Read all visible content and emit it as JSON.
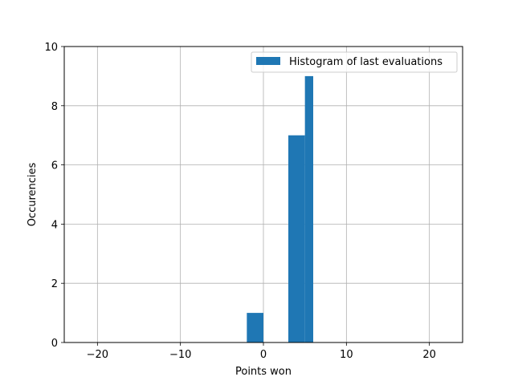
{
  "chart_data": {
    "type": "bar",
    "subtype": "histogram",
    "xlabel": "Points won",
    "ylabel": "Occurencies",
    "xlim": [
      -24,
      24
    ],
    "ylim": [
      0,
      10
    ],
    "xticks": [
      -20,
      -10,
      0,
      10,
      20
    ],
    "xtick_labels": [
      "−20",
      "−10",
      "0",
      "10",
      "20"
    ],
    "yticks": [
      0,
      2,
      4,
      6,
      8,
      10
    ],
    "ytick_labels": [
      "0",
      "2",
      "4",
      "6",
      "8",
      "10"
    ],
    "grid": true,
    "legend_position": "top-right",
    "colors": {
      "bar": "#1f77b4",
      "grid": "#b0b0b0",
      "axis": "#000000"
    },
    "series": [
      {
        "name": "Histogram of last evaluations",
        "bins": [
          {
            "x0": -2,
            "x1": 0,
            "value": 1
          },
          {
            "x0": 3,
            "x1": 5,
            "value": 7
          },
          {
            "x0": 5,
            "x1": 6,
            "value": 9
          }
        ]
      }
    ]
  }
}
